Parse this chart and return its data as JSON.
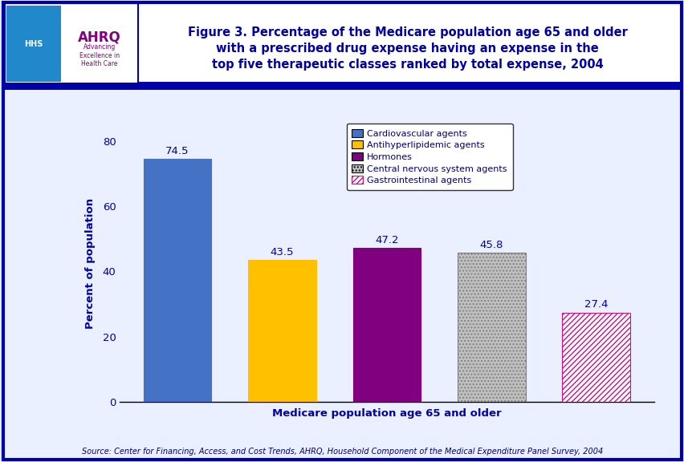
{
  "title_line1": "Figure 3. Percentage of the Medicare population age 65 and older",
  "title_line2": "with a prescribed drug expense having an expense in the",
  "title_line3": "top five therapeutic classes ranked by total expense, 2004",
  "xlabel": "Medicare population age 65 and older",
  "ylabel": "Percent of population",
  "categories": [
    "Cardiovascular agents",
    "Antihyperlipidemic agents",
    "Hormones",
    "Central nervous system agents",
    "Gastrointestinal agents"
  ],
  "values": [
    74.5,
    43.5,
    47.2,
    45.8,
    27.4
  ],
  "bar_colors": [
    "#4472C4",
    "#FFC000",
    "#800080",
    "#C0C0C0",
    "#FFFFFF"
  ],
  "hatch_patterns": [
    null,
    null,
    null,
    "....",
    "/////"
  ],
  "hatch_colors": [
    null,
    null,
    null,
    "#808080",
    "#CC1188"
  ],
  "ylim": [
    0,
    85
  ],
  "yticks": [
    0,
    20,
    40,
    60,
    80
  ],
  "source_text": "Source: Center for Financing, Access, and Cost Trends, AHRQ, Household Component of the Medical Expenditure Panel Survey, 2004",
  "bg_color": "#EAF0FF",
  "header_bg": "#FFFFFF",
  "border_color": "#0000AA",
  "title_color": "#0000AA",
  "axis_label_color": "#0000AA",
  "value_label_color": "#0000AA",
  "source_color": "#000080",
  "legend_items": [
    {
      "label": "Cardiovascular agents",
      "facecolor": "#4472C4",
      "edgecolor": "#000000",
      "hatch": null
    },
    {
      "label": "Antihyperlipidemic agents",
      "facecolor": "#FFC000",
      "edgecolor": "#000000",
      "hatch": null
    },
    {
      "label": "Hormones",
      "facecolor": "#800080",
      "edgecolor": "#000000",
      "hatch": null
    },
    {
      "label": "Central nervous system agents",
      "facecolor": "#C0C0C0",
      "edgecolor": "#000000",
      "hatch": "...."
    },
    {
      "label": "Gastrointestinal agents",
      "facecolor": "#FFFFFF",
      "edgecolor": "#CC1188",
      "hatch": "/////"
    }
  ]
}
